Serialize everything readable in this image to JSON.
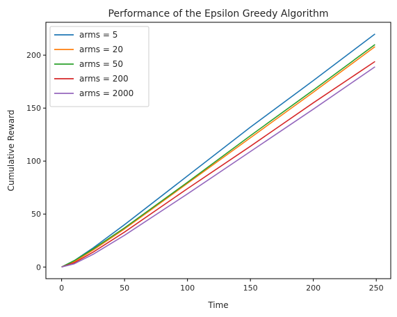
{
  "chart_data": {
    "type": "line",
    "title": "Performance of the Epsilon Greedy Algorithm",
    "xlabel": "Time",
    "ylabel": "Cumulative Reward",
    "xlim": [
      -12.5,
      261.5
    ],
    "ylim": [
      -11,
      231
    ],
    "xticks": [
      0,
      50,
      100,
      150,
      200,
      250
    ],
    "yticks": [
      0,
      50,
      100,
      150,
      200
    ],
    "grid": false,
    "legend_position": "top-left",
    "series": [
      {
        "name": "arms = 5",
        "color": "#1f77b4",
        "x": [
          0,
          10,
          25,
          50,
          100,
          150,
          200,
          249
        ],
        "y": [
          0,
          6,
          18,
          40,
          86,
          132,
          176,
          220
        ]
      },
      {
        "name": "arms = 20",
        "color": "#ff7f0e",
        "x": [
          0,
          10,
          25,
          50,
          100,
          150,
          200,
          249
        ],
        "y": [
          0,
          5,
          16,
          36,
          79,
          122,
          165,
          208
        ]
      },
      {
        "name": "arms = 50",
        "color": "#2ca02c",
        "x": [
          0,
          10,
          25,
          50,
          100,
          150,
          200,
          249
        ],
        "y": [
          0,
          6,
          17,
          37,
          80,
          124,
          167,
          210
        ]
      },
      {
        "name": "arms = 200",
        "color": "#d62728",
        "x": [
          0,
          10,
          25,
          50,
          100,
          150,
          200,
          249
        ],
        "y": [
          0,
          4,
          14,
          33,
          74,
          114,
          155,
          194
        ]
      },
      {
        "name": "arms = 2000",
        "color": "#9467bd",
        "x": [
          0,
          10,
          25,
          50,
          100,
          150,
          200,
          249
        ],
        "y": [
          0,
          3,
          12,
          30,
          69,
          109,
          149,
          189
        ]
      }
    ]
  }
}
